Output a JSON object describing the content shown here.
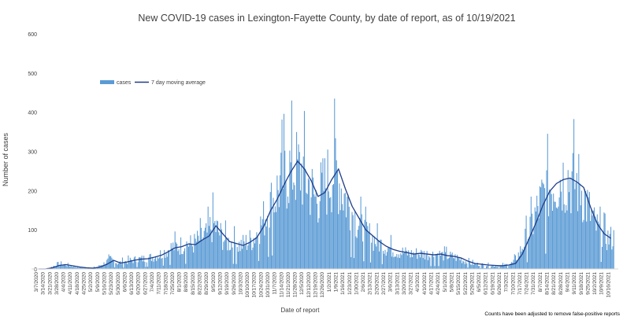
{
  "chart_data": {
    "type": "bar",
    "title": "New COVID-19 cases in Lexington-Fayette County, by date of report, as of 10/19/2021",
    "xlabel": "Date of report",
    "ylabel": "Number of cases",
    "ylim": [
      0,
      600
    ],
    "yticks": [
      "0",
      "100",
      "200",
      "300",
      "400",
      "500",
      "600"
    ],
    "x_start": "3/7/2020",
    "x_end": "10/17/2021",
    "x_tick_labels": [
      "3/7/2020",
      "3/14/2020",
      "3/21/2020",
      "3/28/2020",
      "4/4/2020",
      "4/11/2020",
      "4/18/2020",
      "4/25/2020",
      "5/2/2020",
      "5/9/2020",
      "5/16/2020",
      "5/23/2020",
      "5/30/2020",
      "6/6/2020",
      "6/13/2020",
      "6/20/2020",
      "6/27/2020",
      "7/4/2020",
      "7/11/2020",
      "7/18/2020",
      "7/25/2020",
      "8/1/2020",
      "8/8/2020",
      "8/15/2020",
      "8/22/2020",
      "8/29/2020",
      "9/5/2020",
      "9/12/2020",
      "9/19/2020",
      "9/26/2020",
      "10/3/2020",
      "10/10/2020",
      "10/17/2020",
      "10/24/2020",
      "10/31/2020",
      "11/7/2020",
      "11/14/2020",
      "11/21/2020",
      "11/28/2020",
      "12/5/2020",
      "12/12/2020",
      "12/19/2020",
      "12/26/2020",
      "1/2/2021",
      "1/9/2021",
      "1/16/2021",
      "1/23/2021",
      "1/30/2021",
      "2/6/2021",
      "2/13/2021",
      "2/20/2021",
      "2/27/2021",
      "3/6/2021",
      "3/13/2021",
      "3/20/2021",
      "3/27/2021",
      "4/3/2021",
      "4/10/2021",
      "4/17/2021",
      "4/24/2021",
      "5/1/2021",
      "5/8/2021",
      "5/15/2021",
      "5/22/2021",
      "5/29/2021",
      "6/5/2021",
      "6/12/2021",
      "6/19/2021",
      "6/26/2021",
      "7/3/2021",
      "7/10/2021",
      "7/17/2021",
      "7/24/2021",
      "7/31/2021",
      "8/7/2021",
      "8/14/2021",
      "8/21/2021",
      "8/28/2021",
      "9/4/2021",
      "9/11/2021",
      "9/18/2021",
      "9/25/2021",
      "10/2/2021",
      "10/9/2021",
      "10/16/2021"
    ],
    "grid": false,
    "legend_position": "top-left",
    "series": [
      {
        "name": "cases",
        "kind": "bar",
        "color": "#5b9bd5",
        "weekly_average_values": [
          0,
          0,
          3,
          10,
          12,
          8,
          5,
          3,
          2,
          5,
          14,
          25,
          15,
          18,
          22,
          25,
          26,
          30,
          35,
          45,
          55,
          58,
          65,
          62,
          75,
          85,
          115,
          90,
          70,
          65,
          60,
          68,
          80,
          110,
          150,
          180,
          220,
          250,
          255,
          250,
          220,
          180,
          200,
          230,
          260,
          200,
          160,
          130,
          100,
          85,
          70,
          60,
          52,
          45,
          42,
          38,
          40,
          38,
          36,
          38,
          34,
          32,
          28,
          20,
          14,
          12,
          10,
          9,
          8,
          10,
          15,
          40,
          80,
          120,
          165,
          200,
          220,
          230,
          235,
          225,
          210,
          160,
          115,
          90,
          78
        ]
      },
      {
        "name": "7 day moving average",
        "kind": "line",
        "color": "#1f3c88",
        "weekly_values": [
          0,
          0,
          3,
          9,
          11,
          8,
          5,
          3,
          2,
          5,
          12,
          22,
          15,
          18,
          22,
          25,
          26,
          30,
          35,
          44,
          54,
          57,
          64,
          62,
          74,
          84,
          110,
          90,
          70,
          65,
          60,
          68,
          80,
          108,
          148,
          178,
          215,
          248,
          275,
          255,
          225,
          185,
          195,
          228,
          255,
          205,
          160,
          130,
          100,
          85,
          70,
          58,
          50,
          45,
          42,
          38,
          40,
          38,
          36,
          38,
          34,
          32,
          28,
          20,
          14,
          12,
          10,
          9,
          8,
          10,
          14,
          38,
          78,
          118,
          162,
          198,
          218,
          228,
          232,
          222,
          208,
          158,
          115,
          90,
          78
        ]
      }
    ],
    "footnote": "Counts have been adjusted to remove false-positive reports"
  }
}
